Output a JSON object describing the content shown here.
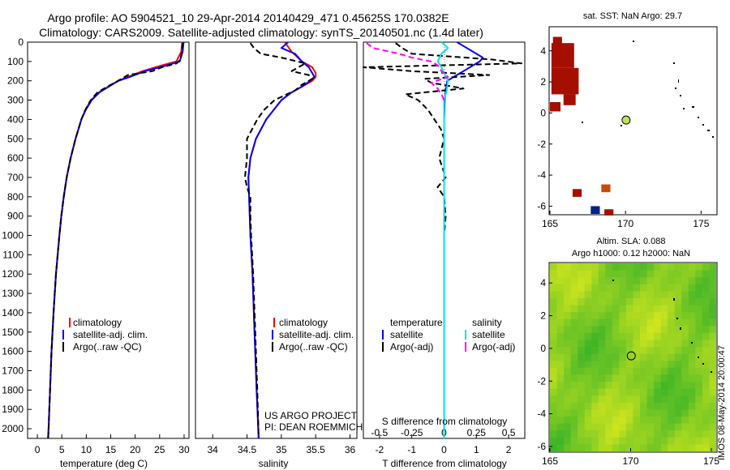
{
  "title": {
    "line1": "Argo profile: AO 5904521_10 29-Apr-2014 20140429_471 0.45625S 170.0382E",
    "line2": "Climatology: CARS2009. Satellite-adjusted climatology: synTS_20140501.nc (1.4d later)"
  },
  "colors": {
    "climatology": "#ff0000",
    "satellite": "#0000ff",
    "argo": "#000000",
    "sal_satellite": "#00e5e5",
    "sal_argo": "#ff00ff",
    "sst_patch": "#a50f00",
    "land_sst_blue": "#00218f",
    "orange": "#c94a05"
  },
  "chart_data": [
    {
      "id": "temperature",
      "type": "line",
      "xlabel": "temperature (deg C)",
      "ylabel": "",
      "xlim": [
        -2,
        31
      ],
      "ylim": [
        2050,
        0
      ],
      "x_ticks": [
        0,
        5,
        10,
        15,
        20,
        25,
        30
      ],
      "x_tick_labels": [
        "0",
        "5",
        "10",
        "15",
        "20",
        "25",
        "30"
      ],
      "y_ticks": [
        0,
        100,
        200,
        300,
        400,
        500,
        600,
        700,
        800,
        900,
        1000,
        1100,
        1200,
        1300,
        1400,
        1500,
        1600,
        1700,
        1800,
        1900,
        2000
      ],
      "y_tick_labels": [
        "0",
        "100",
        "200",
        "300",
        "400",
        "500",
        "600",
        "700",
        "800",
        "900",
        "1000",
        "1100",
        "1200",
        "1300",
        "1400",
        "1500",
        "1600",
        "1700",
        "1800",
        "1900",
        "2000"
      ],
      "legend": [
        "climatology",
        "satellite-adj. clim.",
        "Argo(..raw -QC)"
      ],
      "series": [
        {
          "name": "climatology",
          "color": "#ff0000",
          "depth": [
            0,
            50,
            100,
            120,
            150,
            180,
            200,
            230,
            260,
            300,
            350,
            400,
            500,
            600,
            700,
            800,
            900,
            1000,
            1200,
            1400,
            1600,
            1800,
            2000,
            2050
          ],
          "values": [
            29.6,
            29.4,
            28.4,
            25.5,
            21.5,
            18.5,
            16.5,
            14.5,
            12.6,
            11.0,
            9.8,
            9.0,
            7.8,
            6.8,
            6.0,
            5.4,
            4.9,
            4.5,
            3.8,
            3.3,
            2.9,
            2.6,
            2.3,
            2.2
          ]
        },
        {
          "name": "satellite-adj. clim.",
          "color": "#0000ff",
          "depth": [
            0,
            50,
            100,
            120,
            150,
            180,
            200,
            230,
            260,
            300,
            350,
            400,
            500,
            600,
            700,
            800,
            900,
            1000,
            1200,
            1400,
            1600,
            1800,
            2000,
            2050
          ],
          "values": [
            29.9,
            29.7,
            29.1,
            26.5,
            22.0,
            18.9,
            16.6,
            14.6,
            12.7,
            11.1,
            9.9,
            9.0,
            7.8,
            6.8,
            6.0,
            5.4,
            4.9,
            4.5,
            3.8,
            3.3,
            2.9,
            2.6,
            2.3,
            2.2
          ]
        },
        {
          "name": "Argo(..raw -QC)",
          "color": "#000000",
          "depth": [
            5,
            30,
            60,
            90,
            110,
            130,
            150,
            170,
            200,
            230,
            260,
            300,
            350,
            400,
            500,
            600,
            700,
            800,
            900,
            1000,
            1200,
            1400,
            1600,
            1800,
            2000,
            2050
          ],
          "values": [
            29.7,
            29.6,
            29.5,
            29.2,
            28.5,
            25.5,
            23.5,
            18.5,
            16.5,
            14.3,
            12.3,
            10.9,
            9.8,
            9.0,
            7.8,
            6.8,
            6.0,
            5.4,
            4.9,
            4.5,
            3.8,
            3.3,
            2.9,
            2.6,
            2.3,
            2.2
          ]
        }
      ]
    },
    {
      "id": "salinity",
      "type": "line",
      "xlabel": "salinity",
      "xlim": [
        33.75,
        36.1
      ],
      "ylim": [
        2050,
        0
      ],
      "x_ticks": [
        34,
        34.5,
        35,
        35.5,
        36
      ],
      "x_tick_labels": [
        "34",
        "34.5",
        "35",
        "35.5",
        "36"
      ],
      "legend": [
        "climatology",
        "satellite-adj. clim.",
        "Argo(..raw -QC)"
      ],
      "annotation": [
        "US ARGO PROJECT",
        "PI: DEAN ROEMMICH"
      ],
      "series": [
        {
          "name": "climatology",
          "color": "#ff0000",
          "depth": [
            0,
            50,
            100,
            130,
            160,
            180,
            200,
            230,
            260,
            300,
            400,
            500,
            600,
            700,
            800,
            1000,
            1200,
            1500,
            1800,
            2050
          ],
          "values": [
            35.05,
            35.15,
            35.3,
            35.45,
            35.5,
            35.5,
            35.45,
            35.3,
            35.15,
            35.0,
            34.78,
            34.63,
            34.55,
            34.52,
            34.53,
            34.55,
            34.58,
            34.61,
            34.64,
            34.67
          ]
        },
        {
          "name": "satellite-adj. clim.",
          "color": "#0000ff",
          "depth": [
            0,
            30,
            60,
            100,
            130,
            160,
            180,
            200,
            230,
            260,
            300,
            400,
            500,
            600,
            700,
            800,
            1000,
            1200,
            1500,
            1800,
            2050
          ],
          "values": [
            35.1,
            35.0,
            35.2,
            35.3,
            35.4,
            35.45,
            35.48,
            35.42,
            35.3,
            35.15,
            35.0,
            34.78,
            34.63,
            34.55,
            34.52,
            34.53,
            34.55,
            34.58,
            34.61,
            34.64,
            34.67
          ]
        },
        {
          "name": "Argo(..raw -QC)",
          "color": "#000000",
          "depth": [
            5,
            30,
            60,
            80,
            110,
            130,
            150,
            170,
            190,
            220,
            250,
            300,
            350,
            400,
            500,
            600,
            700,
            750,
            800,
            900,
            1000,
            1200,
            1500,
            1800,
            2050
          ],
          "values": [
            34.55,
            34.6,
            34.7,
            35.0,
            35.35,
            35.25,
            35.15,
            35.4,
            35.45,
            35.3,
            35.2,
            34.9,
            34.75,
            34.65,
            34.5,
            34.5,
            34.47,
            34.5,
            34.55,
            34.55,
            34.56,
            34.59,
            34.62,
            34.65,
            34.67
          ]
        }
      ]
    },
    {
      "id": "difference",
      "type": "line",
      "xlabel": "T difference from climatology",
      "xlabel2": "S difference from climatology",
      "xlim": [
        -2.5,
        2.5
      ],
      "ylim": [
        2050,
        0
      ],
      "x_ticks": [
        -2,
        -1,
        0,
        1,
        2
      ],
      "x_tick_labels": [
        "-2",
        "-1",
        "0",
        "1",
        "2"
      ],
      "x2_ticks": [
        -0.5,
        -0.25,
        0,
        0.25,
        0.5
      ],
      "x2_tick_labels": [
        "-0.5",
        "-0.25",
        "0",
        "0.25",
        "0.5"
      ],
      "legend_headers": [
        "temperature",
        "salinity"
      ],
      "legend": [
        "satellite",
        "Argo(-adj)",
        "satellite",
        "Argo(-adj)"
      ],
      "series": [
        {
          "name": "T satellite",
          "color": "#0000ff",
          "depth": [
            0,
            20,
            50,
            80,
            100,
            120,
            150,
            180,
            200,
            250,
            300,
            400,
            600,
            800,
            1000,
            1500,
            2050
          ],
          "values": [
            0.4,
            0.6,
            0.9,
            1.2,
            1.1,
            0.9,
            0.6,
            0.3,
            0.1,
            0.05,
            0.02,
            0.0,
            0.0,
            0.0,
            0.0,
            0.0,
            0.0
          ]
        },
        {
          "name": "T Argo(-adj)",
          "color": "#000000",
          "depth": [
            5,
            30,
            60,
            90,
            110,
            130,
            150,
            170,
            190,
            210,
            240,
            270,
            300,
            350,
            400,
            450,
            500,
            600,
            700,
            750,
            800,
            900,
            1000,
            1200,
            1500,
            2050
          ],
          "values": [
            -1.5,
            -1.3,
            -1.0,
            1.5,
            2.4,
            -2.5,
            -1.0,
            1.4,
            -0.6,
            -0.4,
            0.6,
            -1.2,
            -0.8,
            -0.5,
            -0.3,
            -0.1,
            0.0,
            -0.15,
            0.05,
            -0.2,
            0.0,
            0.05,
            0.0,
            0.0,
            0.0,
            0.0
          ]
        },
        {
          "name": "S satellite",
          "color": "#00e5e5",
          "depth": [
            0,
            30,
            60,
            100,
            130,
            160,
            200,
            250,
            300,
            400,
            600,
            800,
            1000,
            1500,
            2050
          ],
          "values": [
            -0.02,
            0.03,
            -0.02,
            -0.05,
            -0.02,
            0.0,
            0.03,
            0.02,
            0.0,
            0.0,
            0.0,
            0.0,
            0.0,
            0.0,
            0.0
          ]
        },
        {
          "name": "S Argo(-adj)",
          "color": "#ff00ff",
          "depth": [
            5,
            30,
            60,
            80,
            100,
            120,
            150,
            180,
            210,
            240,
            270,
            300
          ],
          "values": [
            -0.6,
            -0.55,
            -0.35,
            -0.25,
            -0.1,
            -0.05,
            -0.02,
            0.03,
            -0.1,
            -0.05,
            -0.02,
            0.0
          ]
        }
      ]
    },
    {
      "id": "sst_map",
      "type": "heatmap",
      "title": "sat. SST: NaN Argo: 29.7",
      "xlim": [
        165,
        176
      ],
      "ylim": [
        -6.5,
        5.5
      ],
      "x_ticks": [
        165,
        170,
        175
      ],
      "x_tick_labels": [
        "165",
        "170",
        "175"
      ],
      "y_ticks": [
        -6,
        -4,
        -2,
        0,
        2,
        4
      ],
      "y_tick_labels": [
        "-6",
        "-4",
        "-2",
        "0",
        "2",
        "4"
      ],
      "argo_position": {
        "lon": 170.0382,
        "lat": -0.45625
      },
      "cells": [
        {
          "lon": 165.2,
          "lat": 4.9,
          "w": 0.6,
          "h": 0.5,
          "color": "#a50f00"
        },
        {
          "lon": 165.1,
          "lat": 4.5,
          "w": 1.5,
          "h": 1.6,
          "color": "#a50f00"
        },
        {
          "lon": 165.1,
          "lat": 2.9,
          "w": 1.8,
          "h": 1.7,
          "color": "#a50f00"
        },
        {
          "lon": 165.9,
          "lat": 1.2,
          "w": 0.8,
          "h": 0.7,
          "color": "#a50f00"
        },
        {
          "lon": 165.0,
          "lat": 0.7,
          "w": 0.7,
          "h": 0.6,
          "color": "#a50f00"
        },
        {
          "lon": 166.5,
          "lat": -4.9,
          "w": 0.6,
          "h": 0.5,
          "color": "#a50f00"
        },
        {
          "lon": 168.4,
          "lat": -4.6,
          "w": 0.6,
          "h": 0.5,
          "color": "#c94a05"
        },
        {
          "lon": 167.7,
          "lat": -6.0,
          "w": 0.6,
          "h": 0.5,
          "color": "#00218f"
        },
        {
          "lon": 168.6,
          "lat": -6.2,
          "w": 0.6,
          "h": 0.4,
          "color": "#a50f00"
        }
      ]
    },
    {
      "id": "sla_map",
      "type": "heatmap",
      "title": "Altim. SLA: 0.088",
      "subtitle": "Argo h1000: 0.12 h2000: NaN",
      "xlim": [
        165,
        175.3
      ],
      "ylim": [
        -6.3,
        5.2
      ],
      "x_ticks": [
        165,
        170,
        175
      ],
      "x_tick_labels": [
        "165",
        "170",
        "175"
      ],
      "y_ticks": [
        -6,
        -4,
        -2,
        0,
        2,
        4
      ],
      "y_tick_labels": [
        "-6",
        "-4",
        "-2",
        "0",
        "2",
        "4"
      ],
      "argo_position": {
        "lon": 170.0382,
        "lat": -0.45625
      }
    }
  ],
  "footer": {
    "credit": "IMOS 08-May-2014 20:00:47"
  }
}
